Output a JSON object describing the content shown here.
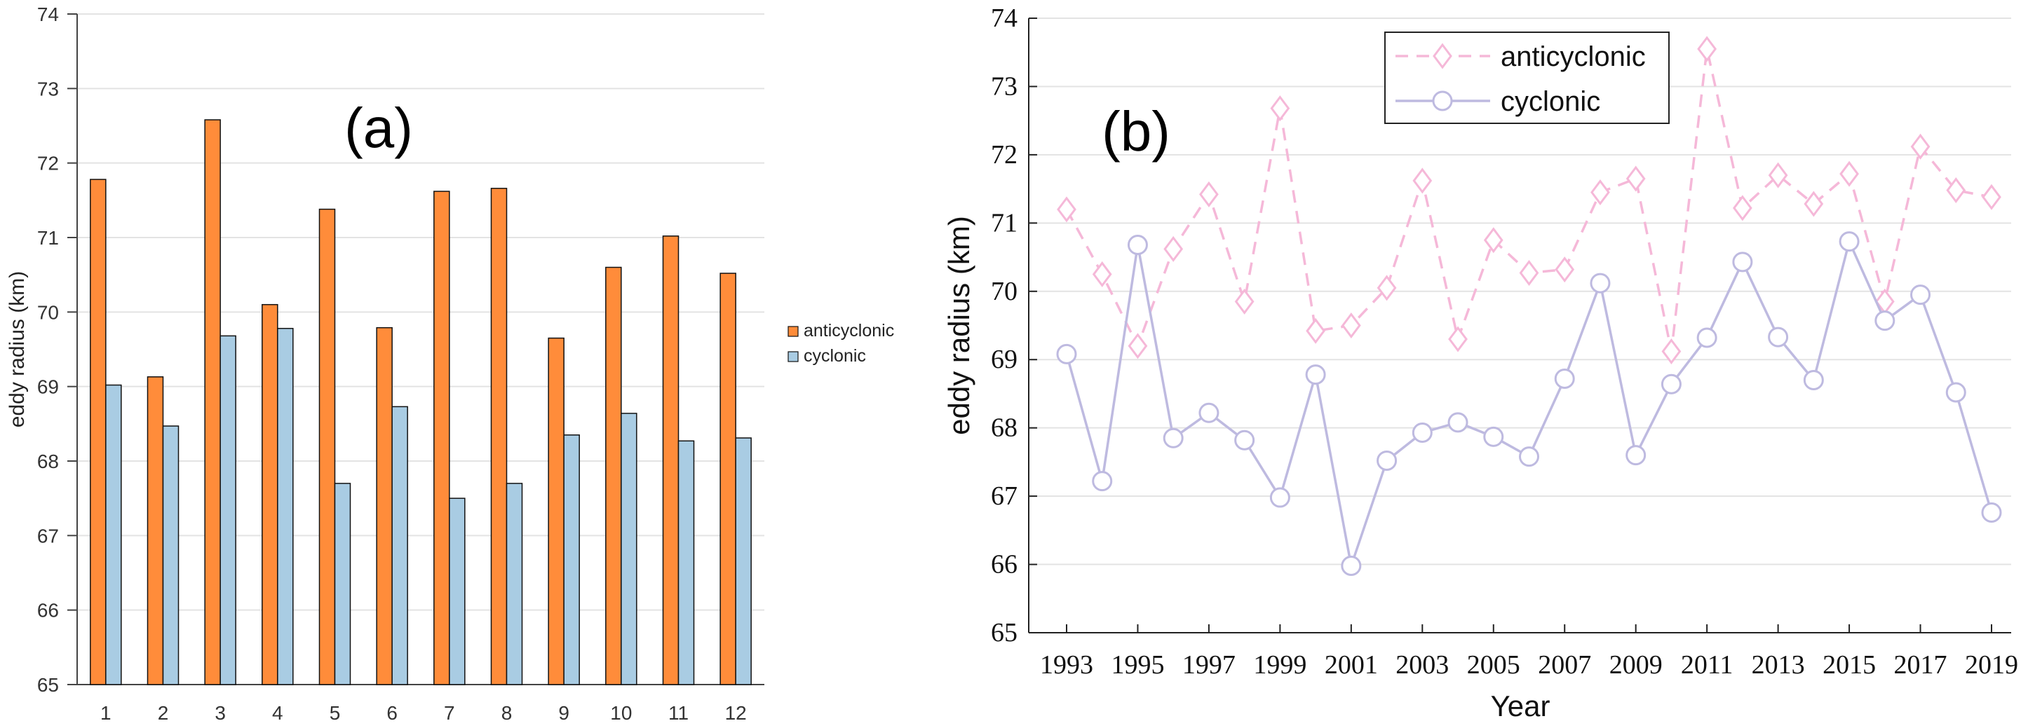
{
  "chart_data": [
    {
      "type": "bar",
      "panel_label": "(a)",
      "ylabel": "eddy radius (km)",
      "ylim": [
        65,
        74
      ],
      "yticks": [
        "65",
        "66",
        "67",
        "68",
        "69",
        "70",
        "71",
        "72",
        "73",
        "74"
      ],
      "grid": "horizontal",
      "legend_position": "right",
      "categories": [
        "1",
        "2",
        "3",
        "4",
        "5",
        "6",
        "7",
        "8",
        "9",
        "10",
        "11",
        "12"
      ],
      "series": [
        {
          "name": "anticyclonic",
          "color": "#FF8C3A",
          "values": [
            71.78,
            69.13,
            72.58,
            70.1,
            71.38,
            69.79,
            71.62,
            71.66,
            69.65,
            70.6,
            71.02,
            70.52
          ]
        },
        {
          "name": "cyclonic",
          "color": "#A9CCE3",
          "values": [
            69.02,
            68.47,
            69.68,
            69.78,
            67.7,
            68.73,
            67.5,
            67.7,
            68.35,
            68.64,
            68.27,
            68.31
          ]
        }
      ]
    },
    {
      "type": "line",
      "panel_label": "(b)",
      "xlabel": "Year",
      "ylabel": "eddy radius (km)",
      "ylim": [
        65,
        74
      ],
      "yticks": [
        "65",
        "66",
        "67",
        "68",
        "69",
        "70",
        "71",
        "72",
        "73",
        "74"
      ],
      "xticks": [
        "1993",
        "1995",
        "1997",
        "1999",
        "2001",
        "2003",
        "2005",
        "2007",
        "2009",
        "2011",
        "2013",
        "2015",
        "2017",
        "2019"
      ],
      "grid": "horizontal",
      "legend_position": "top",
      "x": [
        1993,
        1994,
        1995,
        1996,
        1997,
        1998,
        1999,
        2000,
        2001,
        2002,
        2003,
        2004,
        2005,
        2006,
        2007,
        2008,
        2009,
        2010,
        2011,
        2012,
        2013,
        2014,
        2015,
        2016,
        2017,
        2018,
        2019
      ],
      "series": [
        {
          "name": "anticyclonic",
          "color": "#F5B8D8",
          "style": "dashed",
          "marker": "diamond",
          "values": [
            71.2,
            70.25,
            69.2,
            70.62,
            71.42,
            69.85,
            72.68,
            69.42,
            69.5,
            70.05,
            71.62,
            69.3,
            70.75,
            70.27,
            70.32,
            71.45,
            71.65,
            69.12,
            73.55,
            71.22,
            71.7,
            71.28,
            71.72,
            69.85,
            72.12,
            71.48,
            71.38
          ]
        },
        {
          "name": "cyclonic",
          "color": "#BEBAE0",
          "style": "solid",
          "marker": "circle",
          "values": [
            69.08,
            67.22,
            70.68,
            67.85,
            68.22,
            67.82,
            66.98,
            68.78,
            65.98,
            67.52,
            67.93,
            68.08,
            67.87,
            67.58,
            68.72,
            70.12,
            67.6,
            68.64,
            69.32,
            70.43,
            69.33,
            68.7,
            70.73,
            69.57,
            69.95,
            68.52,
            66.76
          ]
        }
      ]
    }
  ]
}
